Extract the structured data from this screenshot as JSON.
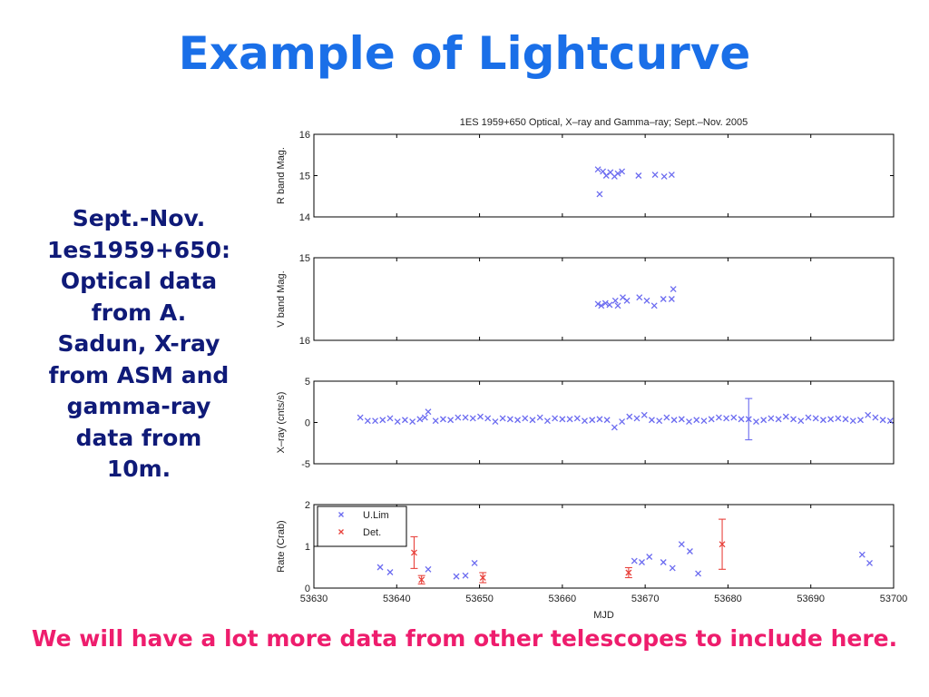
{
  "slide": {
    "title": "Example of Lightcurve",
    "side_text": [
      "Sept.-Nov.",
      "1es1959+650:",
      "Optical data",
      "from A.",
      "Sadun, X-ray",
      "from ASM and",
      "gamma-ray",
      "data from",
      "10m."
    ],
    "footer": "We will have a lot more data from other telescopes to include here."
  },
  "colors": {
    "title": "#1a6fe8",
    "side_text": "#0f1a78",
    "footer": "#ee1d6d",
    "ulim": "#6b6bf0",
    "det": "#e8423c"
  },
  "chart_data": {
    "type": "scatter",
    "title": "1ES 1959+650 Optical, X–ray and Gamma–ray; Sept.–Nov. 2005",
    "xlabel": "MJD",
    "xlim": [
      53630,
      53700
    ],
    "xticks": [
      53630,
      53640,
      53650,
      53660,
      53670,
      53680,
      53690,
      53700
    ],
    "panels": [
      {
        "ylabel": "R band Mag.",
        "ylim": [
          14,
          16
        ],
        "yticks": [
          14,
          15,
          16
        ],
        "series": [
          {
            "marker": "x",
            "points": [
              [
                53664.3,
                15.15
              ],
              [
                53664.5,
                14.55
              ],
              [
                53664.9,
                15.1
              ],
              [
                53665.3,
                15.0
              ],
              [
                53665.8,
                15.08
              ],
              [
                53666.3,
                14.98
              ],
              [
                53666.7,
                15.05
              ],
              [
                53667.2,
                15.1
              ],
              [
                53669.2,
                15.0
              ],
              [
                53671.2,
                15.02
              ],
              [
                53672.3,
                14.98
              ],
              [
                53673.2,
                15.02
              ]
            ]
          }
        ]
      },
      {
        "ylabel": "V band Mag.",
        "ylim": [
          15,
          16
        ],
        "yticks": [
          15,
          16
        ],
        "y_inverted": true,
        "series": [
          {
            "marker": "x",
            "points": [
              [
                53664.3,
                15.56
              ],
              [
                53664.7,
                15.58
              ],
              [
                53665.2,
                15.55
              ],
              [
                53665.7,
                15.57
              ],
              [
                53666.4,
                15.52
              ],
              [
                53666.7,
                15.58
              ],
              [
                53667.3,
                15.48
              ],
              [
                53667.8,
                15.52
              ],
              [
                53669.3,
                15.48
              ],
              [
                53670.2,
                15.52
              ],
              [
                53671.1,
                15.58
              ],
              [
                53672.2,
                15.5
              ],
              [
                53673.2,
                15.5
              ],
              [
                53673.4,
                15.38
              ]
            ]
          }
        ]
      },
      {
        "ylabel": "X–ray (cnts/s)",
        "ylim": [
          -5,
          5
        ],
        "yticks": [
          -5,
          0,
          5
        ],
        "series": [
          {
            "marker": "x",
            "points": [
              [
                53635.6,
                0.6
              ],
              [
                53636.5,
                0.2
              ],
              [
                53637.4,
                0.2
              ],
              [
                53638.3,
                0.3
              ],
              [
                53639.2,
                0.5
              ],
              [
                53640.1,
                0.1
              ],
              [
                53641.0,
                0.3
              ],
              [
                53641.9,
                0.1
              ],
              [
                53642.8,
                0.4
              ],
              [
                53643.4,
                0.6
              ],
              [
                53643.8,
                1.3
              ],
              [
                53644.7,
                0.2
              ],
              [
                53645.6,
                0.4
              ],
              [
                53646.5,
                0.3
              ],
              [
                53647.4,
                0.6
              ],
              [
                53648.3,
                0.6
              ],
              [
                53649.2,
                0.5
              ],
              [
                53650.1,
                0.7
              ],
              [
                53651.0,
                0.5
              ],
              [
                53651.9,
                0.1
              ],
              [
                53652.8,
                0.5
              ],
              [
                53653.7,
                0.4
              ],
              [
                53654.6,
                0.3
              ],
              [
                53655.5,
                0.5
              ],
              [
                53656.4,
                0.3
              ],
              [
                53657.3,
                0.6
              ],
              [
                53658.2,
                0.2
              ],
              [
                53659.1,
                0.5
              ],
              [
                53660.0,
                0.4
              ],
              [
                53660.9,
                0.4
              ],
              [
                53661.8,
                0.5
              ],
              [
                53662.7,
                0.2
              ],
              [
                53663.6,
                0.3
              ],
              [
                53664.5,
                0.4
              ],
              [
                53665.4,
                0.3
              ],
              [
                53666.3,
                -0.6
              ],
              [
                53667.2,
                0.1
              ],
              [
                53668.1,
                0.7
              ],
              [
                53669.0,
                0.5
              ],
              [
                53669.9,
                0.9
              ],
              [
                53670.8,
                0.3
              ],
              [
                53671.7,
                0.2
              ],
              [
                53672.6,
                0.6
              ],
              [
                53673.5,
                0.3
              ],
              [
                53674.4,
                0.4
              ],
              [
                53675.3,
                0.1
              ],
              [
                53676.2,
                0.3
              ],
              [
                53677.1,
                0.2
              ],
              [
                53678.0,
                0.4
              ],
              [
                53678.9,
                0.6
              ],
              [
                53679.8,
                0.5
              ],
              [
                53680.7,
                0.6
              ],
              [
                53681.6,
                0.4
              ],
              [
                53683.4,
                0.1
              ],
              [
                53684.3,
                0.3
              ],
              [
                53685.2,
                0.5
              ],
              [
                53686.1,
                0.4
              ],
              [
                53687.0,
                0.7
              ],
              [
                53687.9,
                0.4
              ],
              [
                53688.8,
                0.2
              ],
              [
                53689.7,
                0.6
              ],
              [
                53690.6,
                0.5
              ],
              [
                53691.5,
                0.3
              ],
              [
                53692.4,
                0.4
              ],
              [
                53693.3,
                0.5
              ],
              [
                53694.2,
                0.4
              ],
              [
                53695.1,
                0.2
              ],
              [
                53696.0,
                0.3
              ],
              [
                53696.9,
                0.9
              ],
              [
                53697.8,
                0.6
              ],
              [
                53698.7,
                0.3
              ],
              [
                53699.6,
                0.2
              ]
            ]
          },
          {
            "marker": "x",
            "points": [
              [
                53682.5,
                0.4
              ]
            ],
            "yerr": [
              2.5
            ]
          }
        ]
      },
      {
        "ylabel": "Rate (Crab)",
        "ylim": [
          0,
          2
        ],
        "yticks": [
          0,
          1,
          2
        ],
        "legend": "top-left",
        "series": [
          {
            "name": "U.Lim",
            "marker": "x",
            "color": "#6b6bf0",
            "points": [
              [
                53638.0,
                0.5
              ],
              [
                53639.2,
                0.38
              ],
              [
                53643.8,
                0.45
              ],
              [
                53647.2,
                0.28
              ],
              [
                53648.3,
                0.3
              ],
              [
                53649.4,
                0.6
              ],
              [
                53668.7,
                0.65
              ],
              [
                53669.6,
                0.62
              ],
              [
                53670.5,
                0.75
              ],
              [
                53672.2,
                0.62
              ],
              [
                53673.3,
                0.48
              ],
              [
                53674.4,
                1.05
              ],
              [
                53675.4,
                0.88
              ],
              [
                53676.4,
                0.35
              ],
              [
                53696.2,
                0.8
              ],
              [
                53697.1,
                0.6
              ]
            ]
          },
          {
            "name": "Det.",
            "marker": "x",
            "color": "#e8423c",
            "points": [
              [
                53642.1,
                0.85
              ],
              [
                53643.0,
                0.2
              ],
              [
                53650.4,
                0.25
              ],
              [
                53668.0,
                0.37
              ],
              [
                53679.3,
                1.05
              ]
            ],
            "yerr": [
              0.38,
              0.1,
              0.12,
              0.12,
              0.6
            ]
          }
        ]
      }
    ]
  }
}
